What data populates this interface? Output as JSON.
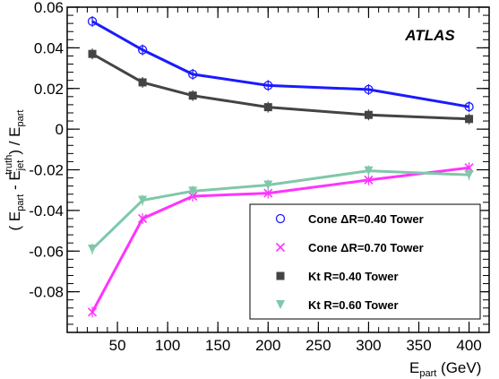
{
  "chart_data": {
    "type": "line",
    "annotation": "ATLAS",
    "xlabel": {
      "main": "E",
      "sub": "part",
      "unit": " (GeV)"
    },
    "ylabel": {
      "open": "( E",
      "sub1": "part",
      "minus": " - E",
      "sub2": "jet",
      "sup2": "truth",
      "close": ") / E",
      "sub3": "part"
    },
    "xlim": [
      0,
      420
    ],
    "ylim": [
      -0.1,
      0.06
    ],
    "x_ticks": [
      50,
      100,
      150,
      200,
      250,
      300,
      350,
      400
    ],
    "x_tick_labels": [
      "50",
      "100",
      "150",
      "200",
      "250",
      "300",
      "350",
      "400"
    ],
    "y_ticks": [
      -0.08,
      -0.06,
      -0.04,
      -0.02,
      0,
      0.02,
      0.04,
      0.06
    ],
    "y_tick_labels": [
      "-0.08",
      "-0.06",
      "-0.04",
      "-0.02",
      "0",
      "0.02",
      "0.04",
      "0.06"
    ],
    "x": [
      25,
      75,
      125,
      200,
      300,
      400
    ],
    "series": [
      {
        "name": "Cone ΔR=0.40 Tower",
        "marker": "open-circle",
        "color": "#1a1aff",
        "values": [
          0.053,
          0.039,
          0.027,
          0.0215,
          0.0195,
          0.011
        ]
      },
      {
        "name": "Cone ΔR=0.70 Tower",
        "marker": "cross",
        "color": "#ff33ff",
        "values": [
          -0.09,
          -0.044,
          -0.033,
          -0.0315,
          -0.025,
          -0.019
        ]
      },
      {
        "name": "Kt R=0.40 Tower",
        "marker": "filled-square",
        "color": "#444444",
        "values": [
          0.037,
          0.023,
          0.0165,
          0.0108,
          0.007,
          0.005
        ]
      },
      {
        "name": "Kt R=0.60 Tower",
        "marker": "filled-triangle-down",
        "color": "#7fc8a9",
        "values": [
          -0.059,
          -0.035,
          -0.0305,
          -0.0275,
          -0.0205,
          -0.0225
        ]
      }
    ],
    "legend_position": "bottom-right"
  }
}
